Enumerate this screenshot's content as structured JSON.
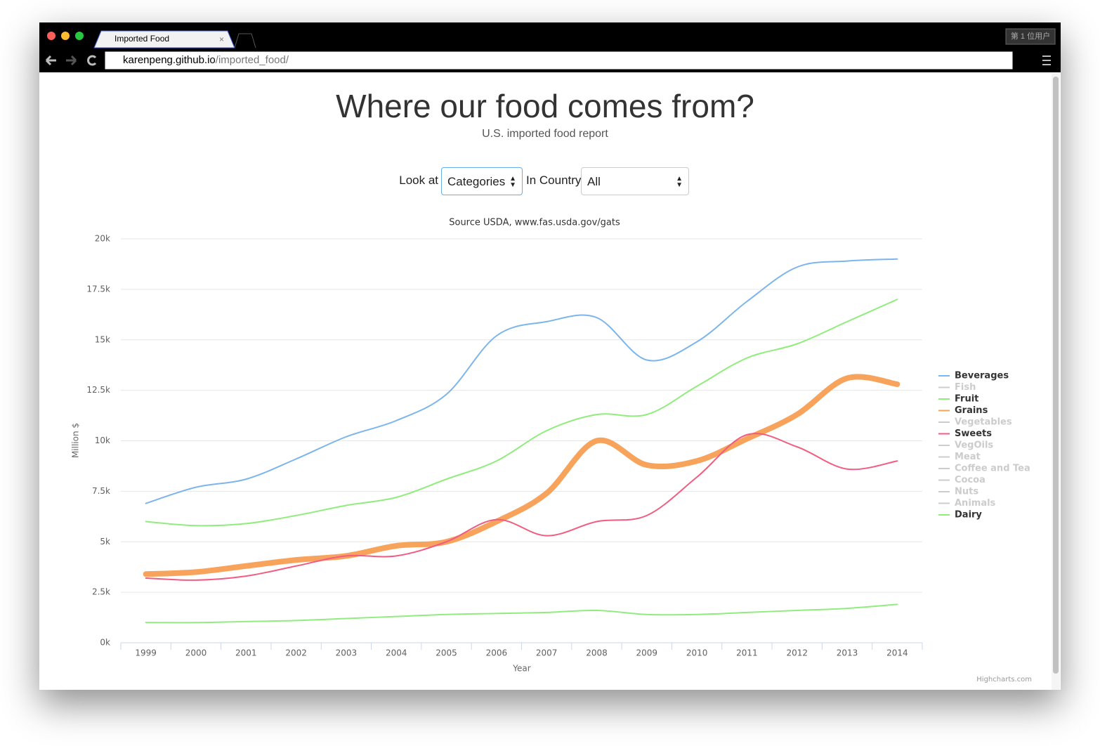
{
  "browser": {
    "tab_title": "Imported Food",
    "url_host": "karenpeng.github.io",
    "url_path": "/imported_food/",
    "user_button": "第 1 位用户"
  },
  "header": {
    "title": "Where our food comes from?",
    "subtitle": "U.S. imported food report"
  },
  "controls": {
    "look_at_label": "Look at",
    "look_at_value": "Categories",
    "country_label": "In Country",
    "country_value": "All"
  },
  "chart_data": {
    "type": "line",
    "subtitle": "Source USDA, www.fas.usda.gov/gats",
    "x_label": "Year",
    "y_label": "Million $",
    "categories": [
      "1999",
      "2000",
      "2001",
      "2002",
      "2003",
      "2004",
      "2005",
      "2006",
      "2007",
      "2008",
      "2009",
      "2010",
      "2011",
      "2012",
      "2013",
      "2014"
    ],
    "series": [
      {
        "name": "Beverages",
        "color": "#7cb5ec",
        "line_width": 2,
        "visible": true,
        "values": [
          6900,
          7700,
          8100,
          9100,
          10200,
          11000,
          12300,
          15200,
          15900,
          16100,
          14000,
          14900,
          16900,
          18600,
          18900,
          19000
        ]
      },
      {
        "name": "Fish",
        "visible": false
      },
      {
        "name": "Fruit",
        "color": "#90ed7d",
        "line_width": 2,
        "visible": true,
        "values": [
          6000,
          5800,
          5900,
          6300,
          6800,
          7200,
          8100,
          9000,
          10500,
          11300,
          11300,
          12700,
          14100,
          14800,
          15900,
          17000
        ]
      },
      {
        "name": "Grains",
        "color": "#f7a35c",
        "line_width": 8,
        "visible": true,
        "values": [
          3400,
          3500,
          3800,
          4100,
          4300,
          4800,
          5000,
          6000,
          7400,
          10000,
          8800,
          9000,
          10100,
          11300,
          13100,
          12800
        ]
      },
      {
        "name": "Vegetables",
        "visible": false
      },
      {
        "name": "Sweets",
        "color": "#f15c80",
        "line_width": 2,
        "visible": true,
        "values": [
          3200,
          3100,
          3300,
          3800,
          4300,
          4300,
          5000,
          6100,
          5300,
          6000,
          6300,
          8200,
          10300,
          9700,
          8600,
          9000
        ]
      },
      {
        "name": "VegOils",
        "visible": false
      },
      {
        "name": "Meat",
        "visible": false
      },
      {
        "name": "Coffee and Tea",
        "visible": false
      },
      {
        "name": "Cocoa",
        "visible": false
      },
      {
        "name": "Nuts",
        "visible": false
      },
      {
        "name": "Animals",
        "visible": false
      },
      {
        "name": "Dairy",
        "color": "#90ed7d",
        "line_width": 2,
        "visible": true,
        "values": [
          1000,
          1000,
          1050,
          1100,
          1200,
          1300,
          1400,
          1450,
          1500,
          1600,
          1400,
          1400,
          1500,
          1600,
          1700,
          1900
        ]
      }
    ],
    "ylim": [
      0,
      20000
    ],
    "yticks": [
      {
        "value": 0,
        "label": "0k"
      },
      {
        "value": 2500,
        "label": "2.5k"
      },
      {
        "value": 5000,
        "label": "5k"
      },
      {
        "value": 7500,
        "label": "7.5k"
      },
      {
        "value": 10000,
        "label": "10k"
      },
      {
        "value": 12500,
        "label": "12.5k"
      },
      {
        "value": 15000,
        "label": "15k"
      },
      {
        "value": 17500,
        "label": "17.5k"
      },
      {
        "value": 20000,
        "label": "20k"
      }
    ],
    "grid": true,
    "legend": "right",
    "credits": "Highcharts.com"
  }
}
